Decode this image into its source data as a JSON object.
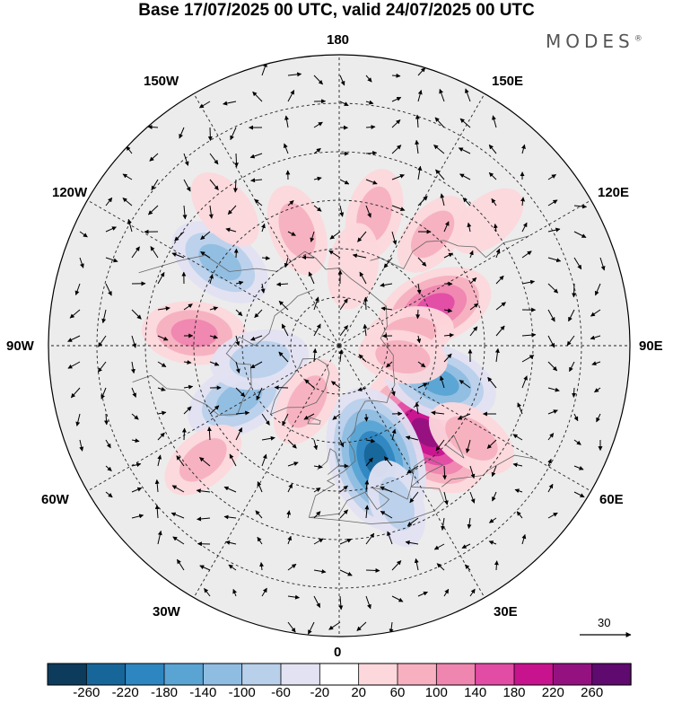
{
  "title": "Base 17/07/2025 00 UTC, valid 24/07/2025 00 UTC",
  "brand": "MODES",
  "brand_mark": "®",
  "meridians": {
    "top": "180",
    "bottom": "0",
    "left": "90W",
    "right": "90E",
    "upper_left_1": "150W",
    "upper_left_2": "120W",
    "upper_right_1": "150E",
    "upper_right_2": "120E",
    "lower_left_1": "60W",
    "lower_left_2": "30W",
    "lower_right_1": "60E",
    "lower_right_2": "30E"
  },
  "reference_vector_label": "30",
  "colorbar": {
    "colors": [
      "#0d3b5c",
      "#17669a",
      "#2e86c1",
      "#5aa4d4",
      "#8fbde2",
      "#b9d0ea",
      "#e2e2f2",
      "#ffffff",
      "#fcd8dc",
      "#f7b0bf",
      "#ef86b0",
      "#e24ca5",
      "#c8138e",
      "#94127f",
      "#5e0a6e"
    ],
    "ticks": [
      "-260",
      "-220",
      "-180",
      "-140",
      "-100",
      "-60",
      "-20",
      "20",
      "60",
      "100",
      "140",
      "180",
      "220",
      "260"
    ]
  },
  "anomalies": [
    {
      "lon": 45,
      "lat": 52,
      "value": 240
    },
    {
      "lon": 18,
      "lat": 53,
      "value": -250
    },
    {
      "lon": 70,
      "lat": 57,
      "value": -150
    },
    {
      "lon": 112,
      "lat": 58,
      "value": 150
    },
    {
      "lon": 100,
      "lat": 68,
      "value": 60
    },
    {
      "lon": 80,
      "lat": 70,
      "value": 60
    },
    {
      "lon": -62,
      "lat": 55,
      "value": -130
    },
    {
      "lon": -125,
      "lat": 45,
      "value": -120
    },
    {
      "lon": -95,
      "lat": 45,
      "value": 110
    },
    {
      "lon": -160,
      "lat": 52,
      "value": 70
    },
    {
      "lon": 165,
      "lat": 48,
      "value": 70
    },
    {
      "lon": 140,
      "lat": 45,
      "value": 60
    },
    {
      "lon": 55,
      "lat": 40,
      "value": 80
    },
    {
      "lon": -80,
      "lat": 65,
      "value": -90
    },
    {
      "lon": -30,
      "lat": 70,
      "value": 70
    },
    {
      "lon": 20,
      "lat": 38,
      "value": -60
    },
    {
      "lon": 170,
      "lat": 65,
      "value": 50
    },
    {
      "lon": -140,
      "lat": 35,
      "value": 50
    },
    {
      "lon": 130,
      "lat": 30,
      "value": 40
    },
    {
      "lon": -50,
      "lat": 35,
      "value": 60
    }
  ]
}
